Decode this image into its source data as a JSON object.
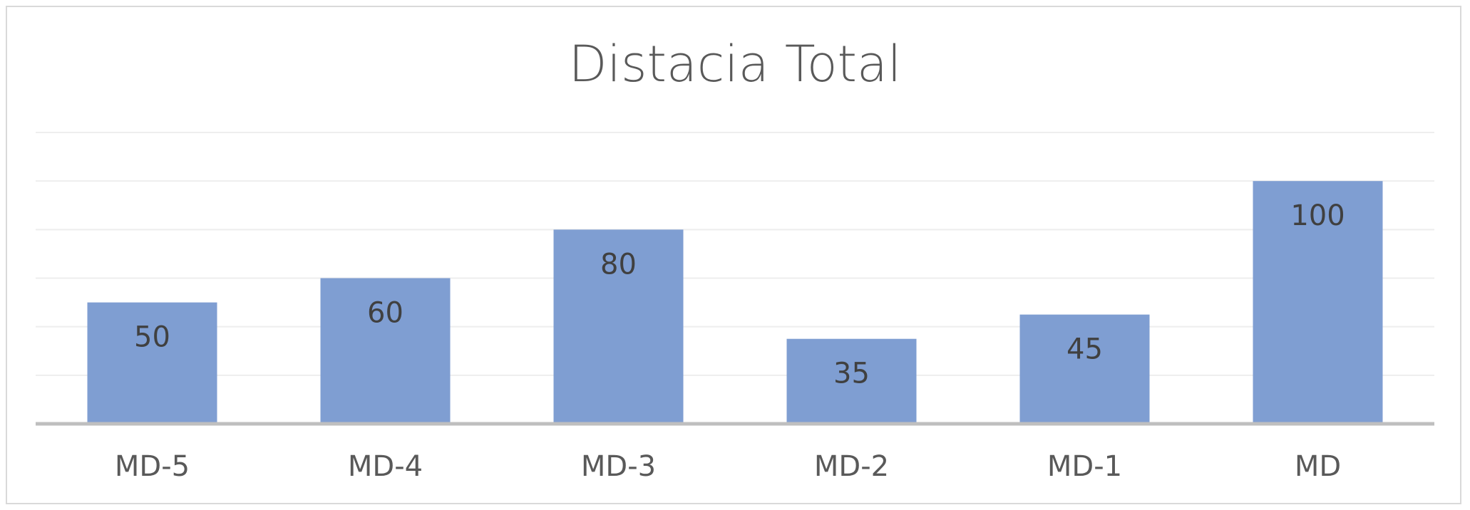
{
  "chart_data": {
    "type": "bar",
    "title": "Distacia Total",
    "xlabel": "",
    "ylabel": "",
    "categories": [
      "MD-5",
      "MD-4",
      "MD-3",
      "MD-2",
      "MD-1",
      "MD"
    ],
    "values": [
      50,
      60,
      80,
      35,
      45,
      100
    ],
    "ylim": [
      0,
      120
    ],
    "grid": true,
    "gridline_values": [
      20,
      40,
      60,
      80,
      100,
      120
    ],
    "data_labels": true,
    "data_label_position": "inside-end",
    "legend": "none",
    "colors": {
      "bar": "#7f9ed2",
      "gridline": "#eeeeee",
      "axis": "#bfbfbf",
      "title": "#595959"
    }
  }
}
